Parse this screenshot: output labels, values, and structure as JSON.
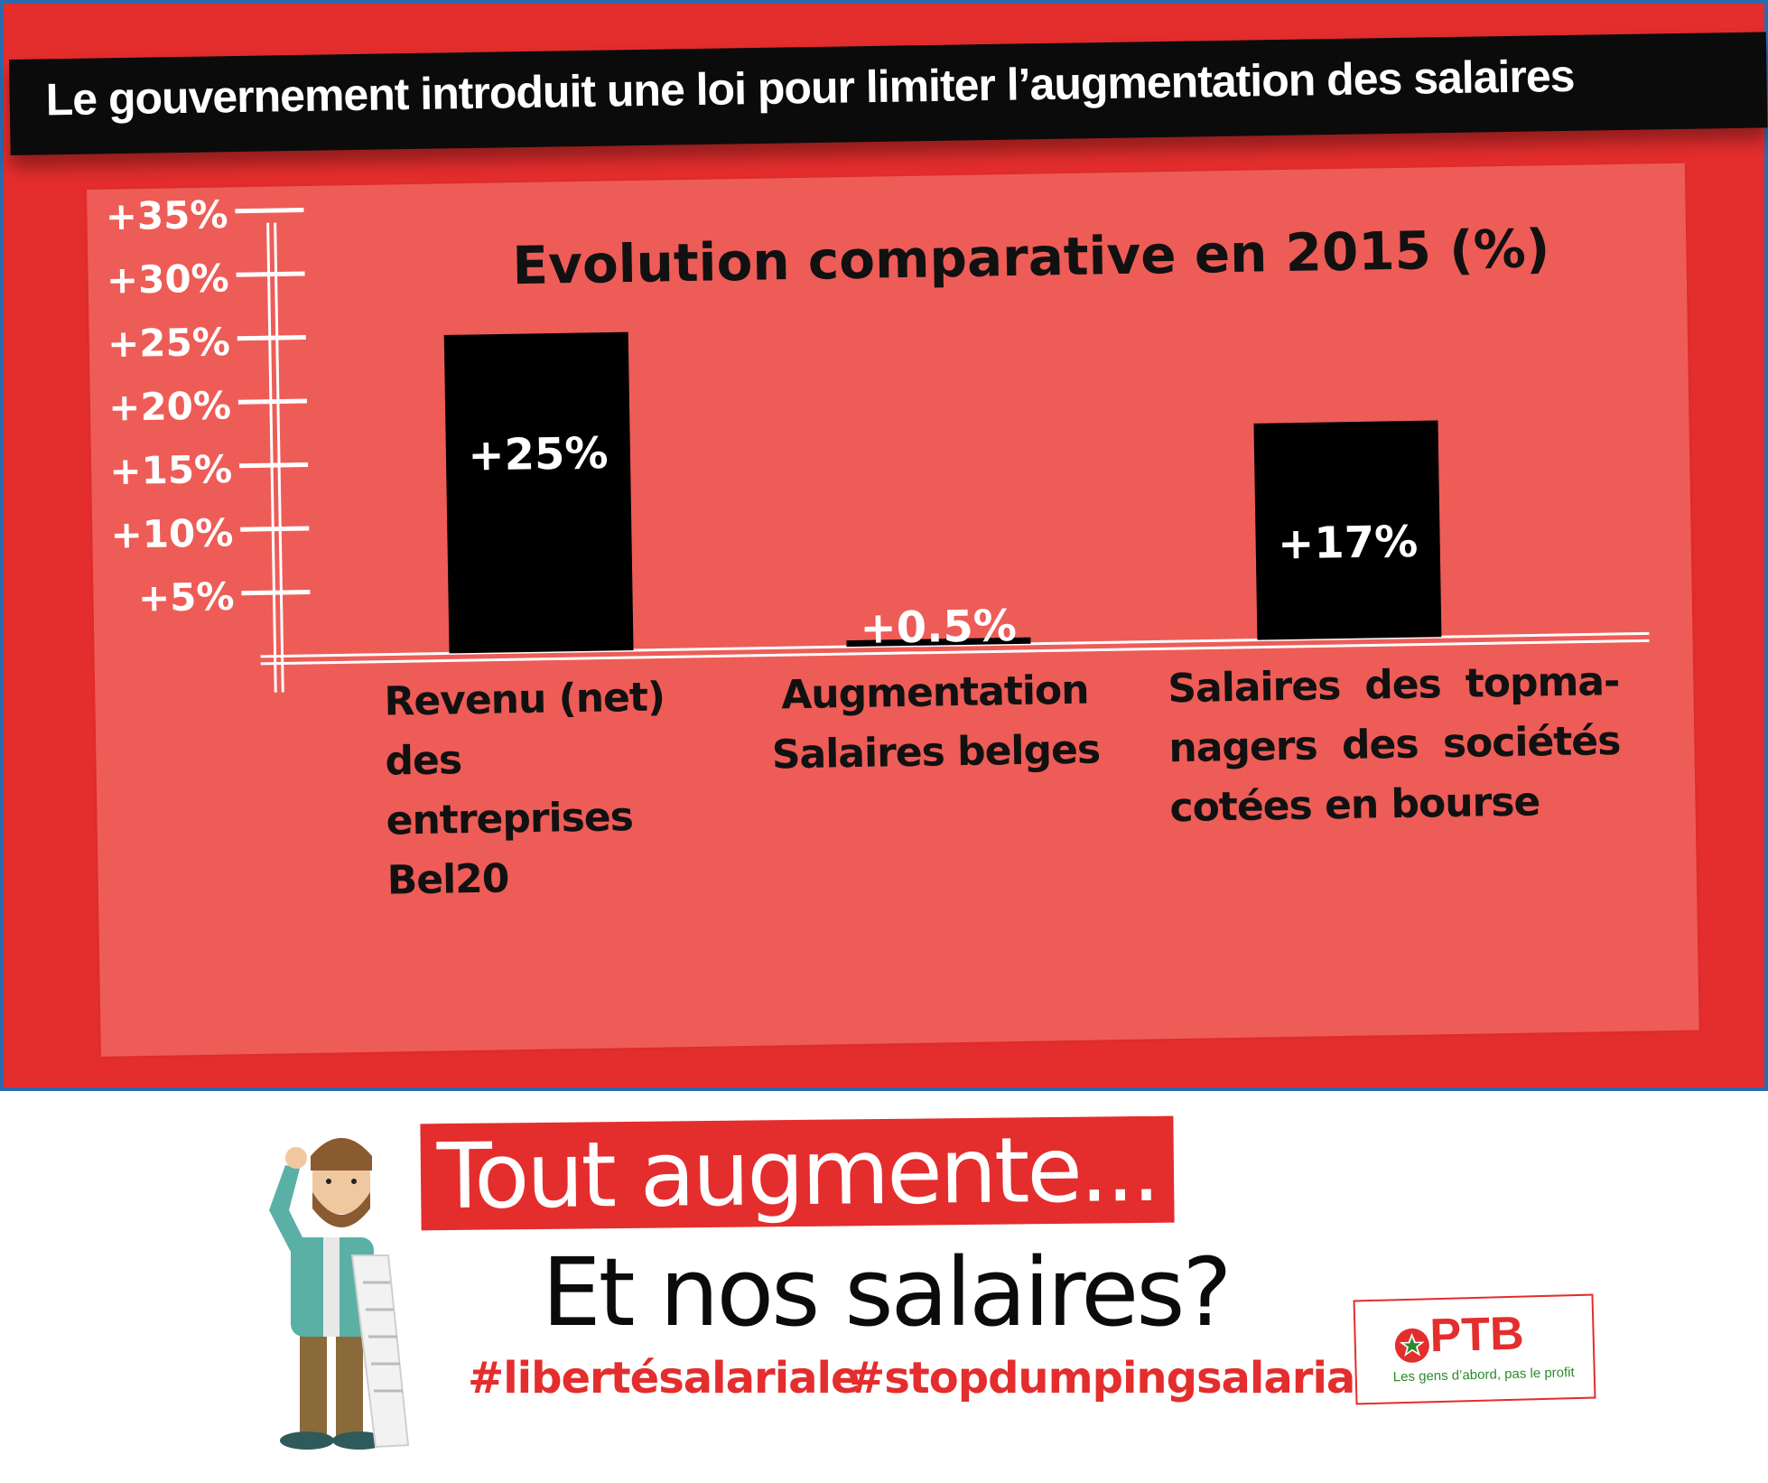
{
  "banner": {
    "title": "Le gouvernement introduit une loi pour limiter l’augmentation des salaires"
  },
  "chart_data": {
    "type": "bar",
    "title": "Evolution comparative en 2015 (%)",
    "yticks": [
      "+5%",
      "+10%",
      "+15%",
      "+20%",
      "+25%",
      "+30%",
      "+35%"
    ],
    "ytick_values": [
      5,
      10,
      15,
      20,
      25,
      30,
      35
    ],
    "ylim": [
      0,
      35
    ],
    "categories": [
      [
        "Revenu (net) des",
        "entreprises Bel20"
      ],
      [
        "Augmentation",
        "Salaires belges"
      ],
      [
        "Salaires des topma-",
        "nagers des sociétés",
        "cotées en bourse"
      ]
    ],
    "values": [
      25,
      0.5,
      17
    ],
    "value_labels": [
      "+25%",
      "+0.5%",
      "+17%"
    ],
    "bar_color": "#000000",
    "background_color": "#ee5c57"
  },
  "bottom": {
    "title": "Tout augmente...",
    "subtitle": "Et nos salaires?",
    "hashtags": [
      "#libertésalariale",
      "#stopdumpingsalarial"
    ]
  },
  "logo": {
    "name": "PTB",
    "slogan": "Les gens d’abord, pas le profit"
  },
  "colors": {
    "brand_red": "#e42d2d",
    "border_blue": "#2a6ab0",
    "slogan_green": "#2a8a2a"
  }
}
